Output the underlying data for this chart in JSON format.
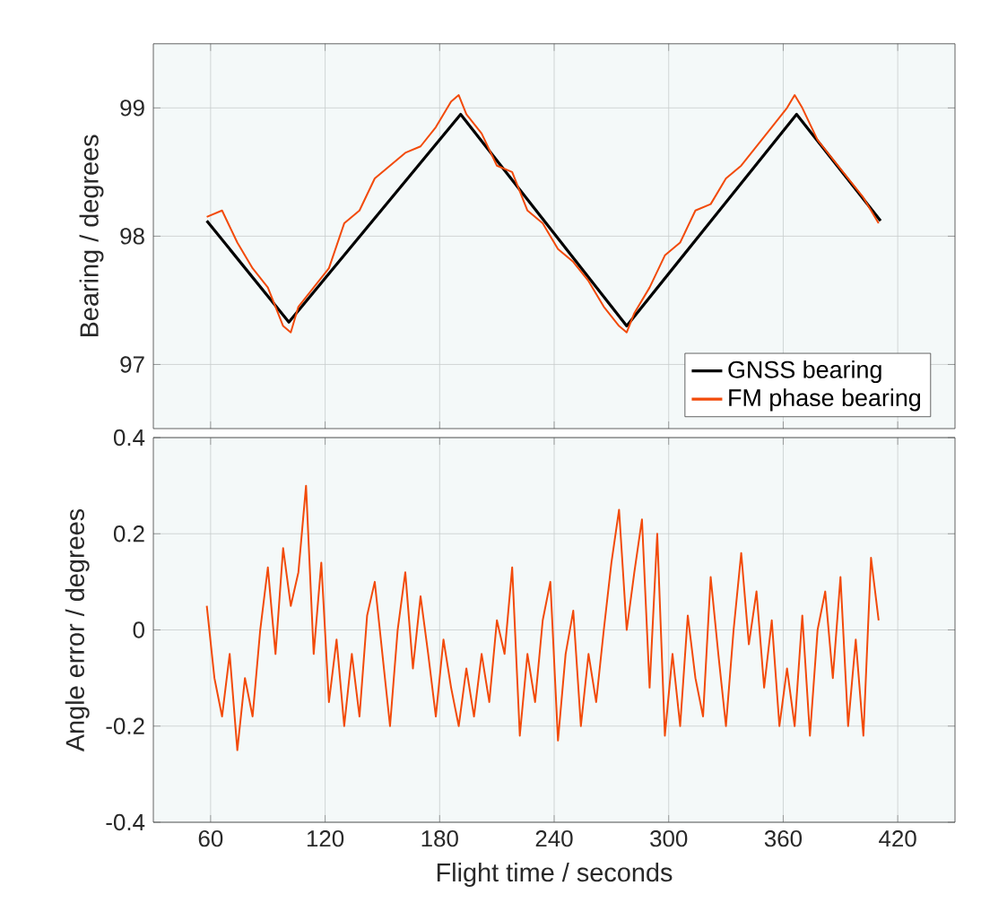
{
  "chart_data": [
    {
      "type": "line",
      "ylabel": "Bearing / degrees",
      "xlim": [
        30,
        450
      ],
      "xticks": [
        60,
        120,
        180,
        240,
        300,
        360,
        420
      ],
      "ylim": [
        96.5,
        99.5
      ],
      "yticks": [
        97,
        98,
        99
      ],
      "tick_labels": "y",
      "grid": true,
      "legend": "bottom right",
      "line_style": "solid",
      "series": [
        {
          "name": "GNSS bearing",
          "color": "#000000",
          "x": [
            58,
            101,
            191,
            278,
            367,
            411
          ],
          "values": [
            98.12,
            97.33,
            98.95,
            97.3,
            98.95,
            98.12
          ]
        },
        {
          "name": "FM phase bearing",
          "color": "#f24a0a",
          "x": [
            58,
            66,
            74,
            82,
            90,
            98,
            102,
            106,
            114,
            122,
            130,
            138,
            146,
            154,
            162,
            170,
            178,
            186,
            190,
            194,
            202,
            210,
            218,
            226,
            234,
            242,
            250,
            258,
            266,
            274,
            278,
            282,
            290,
            298,
            306,
            314,
            322,
            330,
            338,
            346,
            354,
            362,
            366,
            370,
            378,
            386,
            394,
            402,
            410
          ],
          "values": [
            98.15,
            98.2,
            97.95,
            97.75,
            97.6,
            97.3,
            97.25,
            97.45,
            97.6,
            97.75,
            98.1,
            98.2,
            98.45,
            98.55,
            98.65,
            98.7,
            98.85,
            99.05,
            99.1,
            98.95,
            98.8,
            98.55,
            98.5,
            98.2,
            98.1,
            97.9,
            97.8,
            97.65,
            97.45,
            97.3,
            97.25,
            97.4,
            97.6,
            97.85,
            97.95,
            98.2,
            98.25,
            98.45,
            98.55,
            98.7,
            98.85,
            99.0,
            99.1,
            99.0,
            98.75,
            98.6,
            98.45,
            98.3,
            98.1
          ]
        }
      ]
    },
    {
      "type": "line",
      "xlabel": "Flight time / seconds",
      "ylabel": "Angle error / degrees",
      "xlim": [
        30,
        450
      ],
      "xticks": [
        60,
        120,
        180,
        240,
        300,
        360,
        420
      ],
      "ylim": [
        -0.4,
        0.4
      ],
      "yticks": [
        -0.4,
        -0.2,
        0,
        0.2,
        0.4
      ],
      "grid": true,
      "line_style": "solid",
      "series": [
        {
          "color": "#f24a0a",
          "x": [
            58,
            62,
            66,
            70,
            74,
            78,
            82,
            86,
            90,
            94,
            98,
            102,
            106,
            110,
            114,
            118,
            122,
            126,
            130,
            134,
            138,
            142,
            146,
            150,
            154,
            158,
            162,
            166,
            170,
            174,
            178,
            182,
            186,
            190,
            194,
            198,
            202,
            206,
            210,
            214,
            218,
            222,
            226,
            230,
            234,
            238,
            242,
            246,
            250,
            254,
            258,
            262,
            266,
            270,
            274,
            278,
            282,
            286,
            290,
            294,
            298,
            302,
            306,
            310,
            314,
            318,
            322,
            326,
            330,
            334,
            338,
            342,
            346,
            350,
            354,
            358,
            362,
            366,
            370,
            374,
            378,
            382,
            386,
            390,
            394,
            398,
            402,
            406,
            410
          ],
          "values": [
            0.05,
            -0.1,
            -0.18,
            -0.05,
            -0.25,
            -0.1,
            -0.18,
            0.0,
            0.13,
            -0.05,
            0.17,
            0.05,
            0.12,
            0.3,
            -0.05,
            0.14,
            -0.15,
            -0.02,
            -0.2,
            -0.05,
            -0.18,
            0.03,
            0.1,
            -0.05,
            -0.2,
            0.0,
            0.12,
            -0.08,
            0.07,
            -0.05,
            -0.18,
            -0.02,
            -0.12,
            -0.2,
            -0.08,
            -0.18,
            -0.05,
            -0.15,
            0.02,
            -0.05,
            0.13,
            -0.22,
            -0.05,
            -0.15,
            0.02,
            0.1,
            -0.23,
            -0.05,
            0.04,
            -0.2,
            -0.05,
            -0.15,
            0.0,
            0.14,
            0.25,
            0.0,
            0.12,
            0.23,
            -0.12,
            0.2,
            -0.22,
            -0.05,
            -0.2,
            0.03,
            -0.1,
            -0.18,
            0.11,
            -0.05,
            -0.2,
            0.0,
            0.16,
            -0.03,
            0.08,
            -0.12,
            0.02,
            -0.2,
            -0.08,
            -0.2,
            0.03,
            -0.22,
            0.0,
            0.08,
            -0.1,
            0.11,
            -0.2,
            -0.02,
            -0.22,
            0.15,
            0.02
          ]
        }
      ]
    }
  ]
}
